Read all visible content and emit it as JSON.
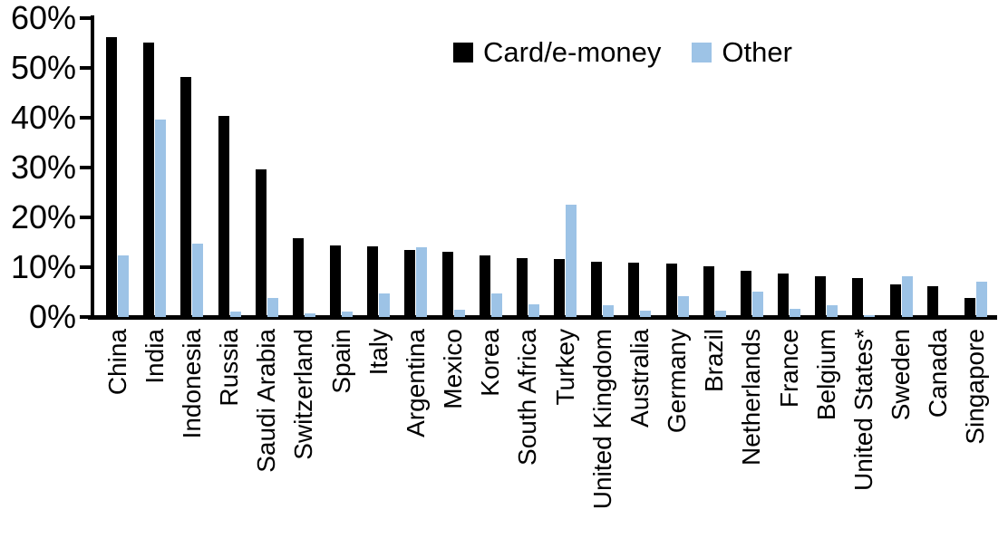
{
  "chart_data": {
    "type": "bar",
    "title": "",
    "xlabel": "",
    "ylabel": "",
    "ylim": [
      0,
      60
    ],
    "grid": false,
    "legend_position": "top-center",
    "yticks": [
      "0%",
      "10%",
      "20%",
      "30%",
      "40%",
      "50%",
      "60%"
    ],
    "categories": [
      "China",
      "India",
      "Indonesia",
      "Russia",
      "Saudi Arabia",
      "Switzerland",
      "Spain",
      "Italy",
      "Argentina",
      "Mexico",
      "Korea",
      "South Africa",
      "Turkey",
      "United Kingdom",
      "Australia",
      "Germany",
      "Brazil",
      "Netherlands",
      "France",
      "Belgium",
      "United States*",
      "Sweden",
      "Canada",
      "Singapore"
    ],
    "series": [
      {
        "name": "Card/e-money",
        "color": "#000000",
        "values": [
          56.2,
          55.0,
          48.2,
          40.4,
          29.7,
          15.8,
          14.3,
          14.2,
          13.5,
          13.0,
          12.4,
          11.8,
          11.7,
          11.1,
          10.9,
          10.8,
          10.1,
          9.3,
          8.7,
          8.2,
          7.9,
          6.5,
          6.1,
          3.9
        ]
      },
      {
        "name": "Other",
        "color": "#9DC3E6",
        "values": [
          12.4,
          39.7,
          14.7,
          1.1,
          3.9,
          0.8,
          1.1,
          4.7,
          14.0,
          1.4,
          4.7,
          2.5,
          22.6,
          2.4,
          1.2,
          4.1,
          1.3,
          5.0,
          1.7,
          2.3,
          0.4,
          8.2,
          0.0,
          7.0
        ]
      }
    ]
  }
}
